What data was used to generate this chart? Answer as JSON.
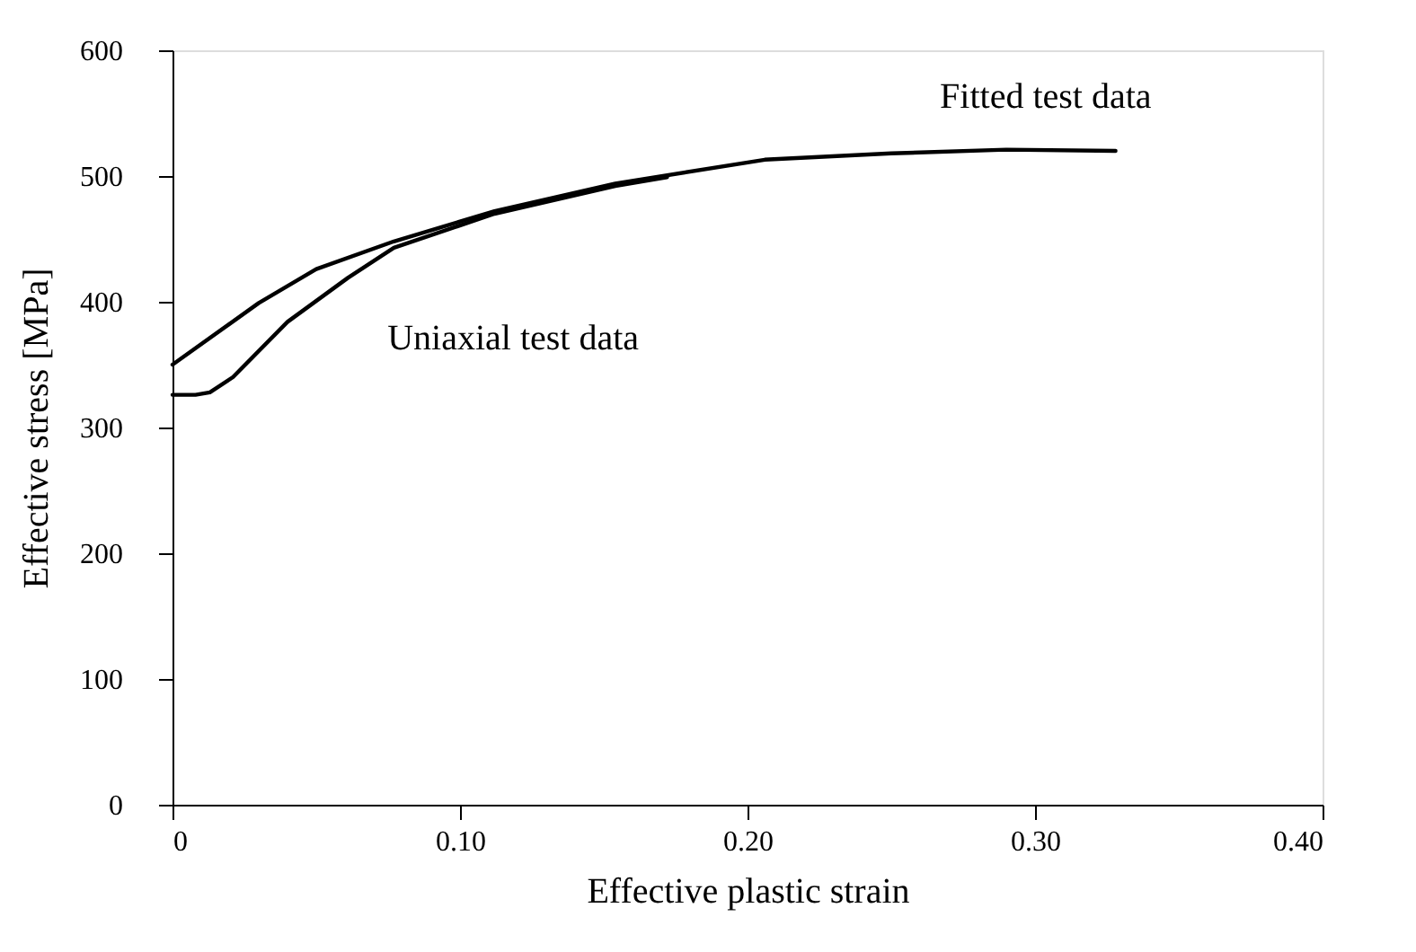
{
  "chart_data": {
    "type": "line",
    "xlabel": "Effective plastic strain",
    "ylabel": "Effective stress [MPa]",
    "xlim": [
      0,
      0.4
    ],
    "ylim": [
      0,
      600
    ],
    "xticks": [
      {
        "value": 0,
        "label": "0"
      },
      {
        "value": 0.1,
        "label": "0.10"
      },
      {
        "value": 0.2,
        "label": "0.20"
      },
      {
        "value": 0.3,
        "label": "0.30"
      },
      {
        "value": 0.4,
        "label": "0.40"
      }
    ],
    "yticks": [
      0,
      100,
      200,
      300,
      400,
      500,
      600
    ],
    "grid": false,
    "marker": "none",
    "line_style": "solid",
    "series": [
      {
        "name": "Fitted test data",
        "color": "#000000",
        "x": [
          0,
          0.03,
          0.05,
          0.077,
          0.112,
          0.154,
          0.206,
          0.25,
          0.29,
          0.328
        ],
        "values": [
          350,
          399,
          426,
          448,
          472,
          494,
          513,
          518,
          521,
          520
        ]
      },
      {
        "name": "Uniaxial test data",
        "color": "#000000",
        "x": [
          0,
          0.008,
          0.013,
          0.021,
          0.04,
          0.061,
          0.077,
          0.112,
          0.154,
          0.172
        ],
        "values": [
          326,
          326,
          328,
          340,
          384,
          419,
          443,
          470,
          492,
          499
        ]
      }
    ]
  }
}
